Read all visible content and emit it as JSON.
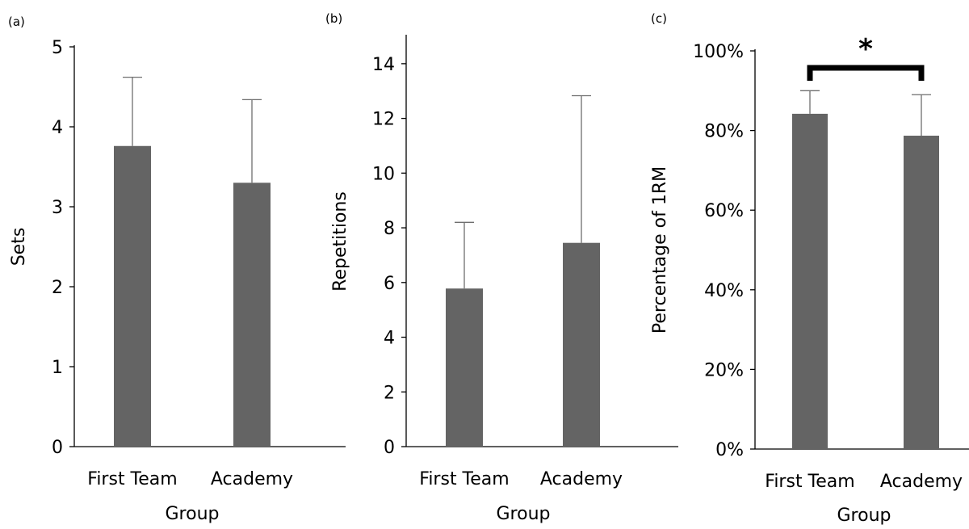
{
  "chart_data": [
    {
      "type": "bar",
      "panel_label": "(a)",
      "categories": [
        "First Team",
        "Academy"
      ],
      "values": [
        3.76,
        3.3
      ],
      "errors": [
        0.86,
        1.04
      ],
      "ylim": [
        0,
        5
      ],
      "yticks": [
        0,
        1,
        2,
        3,
        4,
        5
      ],
      "ytick_labels": [
        "0",
        "1",
        "2",
        "3",
        "4",
        "5"
      ],
      "xlabel": "Group",
      "ylabel": "Sets",
      "bar_color": "#646464"
    },
    {
      "type": "bar",
      "panel_label": "(b)",
      "categories": [
        "First Team",
        "Academy"
      ],
      "values": [
        5.78,
        7.45
      ],
      "errors": [
        2.42,
        5.38
      ],
      "ylim": [
        0,
        15
      ],
      "yticks": [
        0,
        2,
        4,
        6,
        8,
        10,
        12,
        14
      ],
      "ytick_labels": [
        "0",
        "2",
        "4",
        "6",
        "8",
        "10",
        "12",
        "14"
      ],
      "xlabel": "Group",
      "ylabel": "Repetitions",
      "bar_color": "#646464"
    },
    {
      "type": "bar",
      "panel_label": "(c)",
      "categories": [
        "First Team",
        "Academy"
      ],
      "values": [
        84.2,
        78.7
      ],
      "errors": [
        5.8,
        10.3
      ],
      "ylim": [
        0,
        100
      ],
      "yticks": [
        0,
        20,
        40,
        60,
        80,
        100
      ],
      "ytick_labels": [
        "0%",
        "20%",
        "40%",
        "60%",
        "80%",
        "100%"
      ],
      "xlabel": "Group",
      "ylabel": "Percentage of 1RM",
      "bar_color": "#646464",
      "significance": {
        "between": [
          "First Team",
          "Academy"
        ],
        "symbol": "*"
      }
    }
  ]
}
